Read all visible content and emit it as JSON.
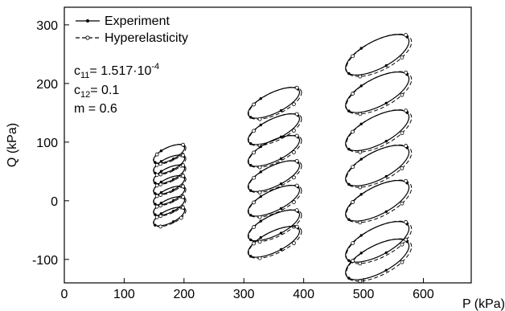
{
  "chart_data": {
    "type": "line",
    "xlabel": "P (kPa)",
    "ylabel": "Q (kPa)",
    "xlim": [
      0,
      680
    ],
    "ylim": [
      -140,
      330
    ],
    "xticks": [
      "0",
      "100",
      "200",
      "300",
      "400",
      "500",
      "600"
    ],
    "xtick_values": [
      0,
      100,
      200,
      300,
      400,
      500,
      600
    ],
    "yticks": [
      "-100",
      "0",
      "100",
      "200",
      "300"
    ],
    "ytick_values": [
      -100,
      0,
      100,
      200,
      300
    ],
    "grid": false,
    "legend_position": "top-left",
    "series": [
      {
        "name": "Experiment",
        "line": "solid",
        "marker": "filled-dot"
      },
      {
        "name": "Hyperelasticity",
        "line": "dashed",
        "marker": "open-circle"
      }
    ],
    "annotation": {
      "c11_label": "c",
      "c11_sub": "11",
      "c11_value": "= 1.517·10",
      "c11_exp": "-4",
      "c12_label": "c",
      "c12_sub": "12",
      "c12_value": "= 0.1",
      "m_text": "m = 0.6"
    },
    "loops": [
      {
        "cx": 175,
        "cy": 80,
        "rx": 26,
        "ry": 12,
        "tilt": 0.4
      },
      {
        "cx": 175,
        "cy": 62,
        "rx": 26,
        "ry": 12,
        "tilt": 0.4
      },
      {
        "cx": 175,
        "cy": 45,
        "rx": 26,
        "ry": 12,
        "tilt": 0.4
      },
      {
        "cx": 175,
        "cy": 27,
        "rx": 26,
        "ry": 12,
        "tilt": 0.4
      },
      {
        "cx": 175,
        "cy": 9,
        "rx": 26,
        "ry": 12,
        "tilt": 0.4
      },
      {
        "cx": 175,
        "cy": -9,
        "rx": 26,
        "ry": 12,
        "tilt": 0.4
      },
      {
        "cx": 175,
        "cy": -27,
        "rx": 26,
        "ry": 12,
        "tilt": 0.4
      },
      {
        "cx": 350,
        "cy": 167,
        "rx": 43,
        "ry": 19,
        "tilt": 0.42
      },
      {
        "cx": 350,
        "cy": 122,
        "rx": 43,
        "ry": 19,
        "tilt": 0.42
      },
      {
        "cx": 350,
        "cy": 85,
        "rx": 43,
        "ry": 19,
        "tilt": 0.42
      },
      {
        "cx": 350,
        "cy": 42,
        "rx": 43,
        "ry": 19,
        "tilt": 0.42
      },
      {
        "cx": 350,
        "cy": 0,
        "rx": 43,
        "ry": 19,
        "tilt": 0.42
      },
      {
        "cx": 350,
        "cy": -42,
        "rx": 43,
        "ry": 19,
        "tilt": 0.42
      },
      {
        "cx": 350,
        "cy": -70,
        "rx": 43,
        "ry": 19,
        "tilt": 0.42
      },
      {
        "cx": 523,
        "cy": 249,
        "rx": 53,
        "ry": 26,
        "tilt": 0.43
      },
      {
        "cx": 523,
        "cy": 185,
        "rx": 53,
        "ry": 26,
        "tilt": 0.43
      },
      {
        "cx": 523,
        "cy": 120,
        "rx": 53,
        "ry": 26,
        "tilt": 0.43
      },
      {
        "cx": 523,
        "cy": 60,
        "rx": 53,
        "ry": 26,
        "tilt": 0.43
      },
      {
        "cx": 523,
        "cy": 0,
        "rx": 53,
        "ry": 26,
        "tilt": 0.43
      },
      {
        "cx": 523,
        "cy": -70,
        "rx": 53,
        "ry": 26,
        "tilt": 0.43
      },
      {
        "cx": 523,
        "cy": -100,
        "rx": 53,
        "ry": 26,
        "tilt": 0.43
      }
    ]
  }
}
